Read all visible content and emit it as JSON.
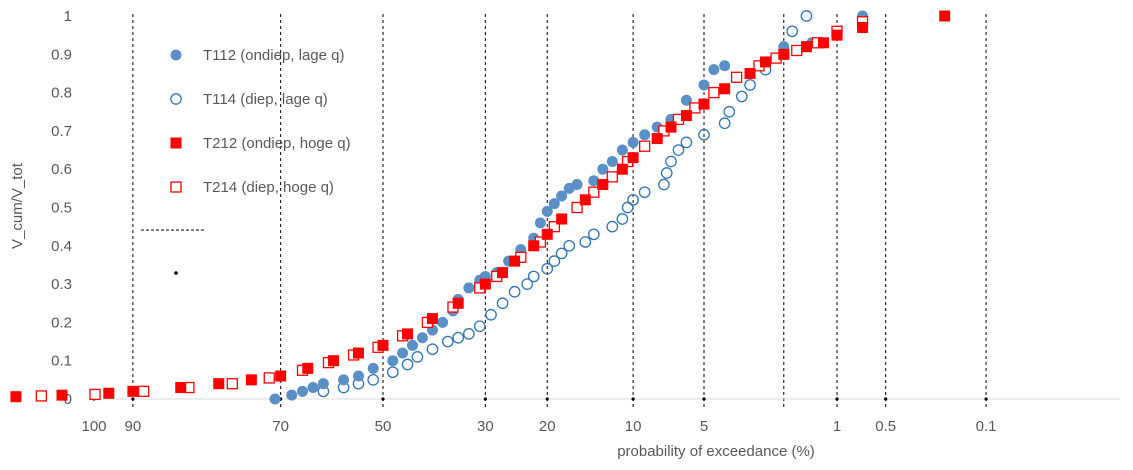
{
  "chart_data": {
    "type": "scatter",
    "title": "",
    "xlabel": "probability of exceedance (%)",
    "ylabel": "V_cum/V_tot",
    "x_scale": "normal-probability",
    "x_direction": "decreasing",
    "xlim": [
      100,
      0.02
    ],
    "ylim": [
      0,
      1
    ],
    "x_ticks": [
      {
        "value": 100,
        "label": "100"
      },
      {
        "value": 90,
        "label": "90"
      },
      {
        "value": 70,
        "label": "70"
      },
      {
        "value": 50,
        "label": "50"
      },
      {
        "value": 30,
        "label": "30"
      },
      {
        "value": 20,
        "label": "20"
      },
      {
        "value": 10,
        "label": "10"
      },
      {
        "value": 5,
        "label": "5"
      },
      {
        "value": 1,
        "label": "1"
      },
      {
        "value": 0.5,
        "label": "0.5"
      },
      {
        "value": 0.1,
        "label": "0.1"
      }
    ],
    "y_ticks": [
      {
        "value": 0,
        "label": "0"
      },
      {
        "value": 0.1,
        "label": "0.1"
      },
      {
        "value": 0.2,
        "label": "0.2"
      },
      {
        "value": 0.3,
        "label": "0.3"
      },
      {
        "value": 0.4,
        "label": "0.4"
      },
      {
        "value": 0.5,
        "label": "0.5"
      },
      {
        "value": 0.6,
        "label": "0.6"
      },
      {
        "value": 0.7,
        "label": "0.7"
      },
      {
        "value": 0.8,
        "label": "0.8"
      },
      {
        "value": 0.9,
        "label": "0.9"
      },
      {
        "value": 1,
        "label": "1"
      }
    ],
    "vertical_gridlines_dashed": [
      99,
      90,
      70,
      50,
      30,
      20,
      10,
      5,
      2,
      1,
      0.5,
      0.1
    ],
    "horizontal_gridlines": false,
    "legend_position": "top-left",
    "series": [
      {
        "name": "T112 (ondiep, lage q)",
        "marker": "circle-filled",
        "color": "#5B8FC7",
        "points": [
          [
            71,
            0.0
          ],
          [
            68,
            0.01
          ],
          [
            66,
            0.02
          ],
          [
            64,
            0.03
          ],
          [
            62,
            0.04
          ],
          [
            58,
            0.05
          ],
          [
            55,
            0.06
          ],
          [
            52,
            0.08
          ],
          [
            48,
            0.1
          ],
          [
            46,
            0.12
          ],
          [
            44,
            0.14
          ],
          [
            42,
            0.16
          ],
          [
            40,
            0.18
          ],
          [
            38,
            0.2
          ],
          [
            36,
            0.23
          ],
          [
            35,
            0.26
          ],
          [
            33,
            0.29
          ],
          [
            31,
            0.31
          ],
          [
            30,
            0.32
          ],
          [
            28,
            0.33
          ],
          [
            26,
            0.36
          ],
          [
            24,
            0.39
          ],
          [
            22,
            0.42
          ],
          [
            21,
            0.46
          ],
          [
            20,
            0.49
          ],
          [
            19,
            0.51
          ],
          [
            18,
            0.53
          ],
          [
            17,
            0.55
          ],
          [
            16,
            0.56
          ],
          [
            14,
            0.57
          ],
          [
            13,
            0.6
          ],
          [
            12,
            0.62
          ],
          [
            11,
            0.65
          ],
          [
            10,
            0.67
          ],
          [
            9,
            0.69
          ],
          [
            8,
            0.71
          ],
          [
            7,
            0.73
          ],
          [
            6,
            0.78
          ],
          [
            5,
            0.82
          ],
          [
            4.5,
            0.86
          ],
          [
            4,
            0.87
          ],
          [
            2,
            0.92
          ],
          [
            1.4,
            0.93
          ],
          [
            0.7,
            1.0
          ]
        ]
      },
      {
        "name": "T114 (diep, lage q)",
        "marker": "circle-open",
        "color": "#2E75B6",
        "points": [
          [
            62,
            0.02
          ],
          [
            58,
            0.03
          ],
          [
            55,
            0.04
          ],
          [
            52,
            0.05
          ],
          [
            48,
            0.07
          ],
          [
            45,
            0.09
          ],
          [
            43,
            0.11
          ],
          [
            40,
            0.13
          ],
          [
            37,
            0.15
          ],
          [
            35,
            0.16
          ],
          [
            33,
            0.17
          ],
          [
            31,
            0.19
          ],
          [
            29,
            0.22
          ],
          [
            27,
            0.25
          ],
          [
            25,
            0.28
          ],
          [
            23,
            0.3
          ],
          [
            22,
            0.32
          ],
          [
            20,
            0.34
          ],
          [
            19,
            0.36
          ],
          [
            18,
            0.38
          ],
          [
            17,
            0.4
          ],
          [
            15,
            0.41
          ],
          [
            14,
            0.43
          ],
          [
            12,
            0.45
          ],
          [
            11,
            0.47
          ],
          [
            10.5,
            0.5
          ],
          [
            10,
            0.52
          ],
          [
            9,
            0.54
          ],
          [
            7.5,
            0.56
          ],
          [
            7.3,
            0.59
          ],
          [
            7,
            0.62
          ],
          [
            6.5,
            0.65
          ],
          [
            6,
            0.67
          ],
          [
            5,
            0.69
          ],
          [
            4,
            0.72
          ],
          [
            3.8,
            0.75
          ],
          [
            3.3,
            0.79
          ],
          [
            3,
            0.82
          ],
          [
            2.5,
            0.86
          ],
          [
            2,
            0.9
          ],
          [
            1.8,
            0.96
          ],
          [
            1.5,
            1.0
          ]
        ]
      },
      {
        "name": "T212 (ondiep, hoge q)",
        "marker": "square-filled",
        "color": "#FF0000",
        "points": [
          [
            99.3,
            0.0
          ],
          [
            98.5,
            0.003
          ],
          [
            97,
            0.006
          ],
          [
            95,
            0.01
          ],
          [
            92,
            0.015
          ],
          [
            90,
            0.02
          ],
          [
            85,
            0.03
          ],
          [
            80,
            0.04
          ],
          [
            75,
            0.05
          ],
          [
            70,
            0.06
          ],
          [
            65,
            0.08
          ],
          [
            60,
            0.1
          ],
          [
            55,
            0.12
          ],
          [
            50,
            0.14
          ],
          [
            45,
            0.17
          ],
          [
            40,
            0.21
          ],
          [
            35,
            0.25
          ],
          [
            30,
            0.3
          ],
          [
            27,
            0.33
          ],
          [
            25,
            0.36
          ],
          [
            22,
            0.4
          ],
          [
            20,
            0.43
          ],
          [
            18,
            0.47
          ],
          [
            15,
            0.52
          ],
          [
            13,
            0.56
          ],
          [
            11,
            0.6
          ],
          [
            10,
            0.63
          ],
          [
            8,
            0.68
          ],
          [
            7,
            0.71
          ],
          [
            6,
            0.74
          ],
          [
            5,
            0.77
          ],
          [
            4,
            0.81
          ],
          [
            3,
            0.85
          ],
          [
            2.5,
            0.88
          ],
          [
            2,
            0.9
          ],
          [
            1.5,
            0.92
          ],
          [
            1.2,
            0.93
          ],
          [
            1.0,
            0.95
          ],
          [
            0.7,
            0.97
          ],
          [
            0.2,
            1.0
          ]
        ]
      },
      {
        "name": "T214 (diep, hoge q)",
        "marker": "square-open",
        "color": "#FF0000",
        "points": [
          [
            99.5,
            0.0
          ],
          [
            98,
            0.004
          ],
          [
            96,
            0.008
          ],
          [
            93,
            0.012
          ],
          [
            89,
            0.02
          ],
          [
            84,
            0.03
          ],
          [
            78,
            0.04
          ],
          [
            72,
            0.055
          ],
          [
            66,
            0.075
          ],
          [
            61,
            0.095
          ],
          [
            56,
            0.115
          ],
          [
            51,
            0.135
          ],
          [
            46,
            0.165
          ],
          [
            41,
            0.2
          ],
          [
            36,
            0.24
          ],
          [
            31,
            0.29
          ],
          [
            28,
            0.32
          ],
          [
            24,
            0.37
          ],
          [
            21,
            0.41
          ],
          [
            19,
            0.45
          ],
          [
            16,
            0.5
          ],
          [
            14,
            0.54
          ],
          [
            12,
            0.58
          ],
          [
            10.5,
            0.62
          ],
          [
            9,
            0.66
          ],
          [
            7.5,
            0.7
          ],
          [
            6.5,
            0.73
          ],
          [
            5.5,
            0.76
          ],
          [
            4.5,
            0.8
          ],
          [
            3.5,
            0.84
          ],
          [
            2.7,
            0.87
          ],
          [
            2.2,
            0.89
          ],
          [
            1.7,
            0.91
          ],
          [
            1.3,
            0.93
          ],
          [
            1.0,
            0.96
          ],
          [
            0.7,
            0.985
          ]
        ]
      }
    ]
  }
}
